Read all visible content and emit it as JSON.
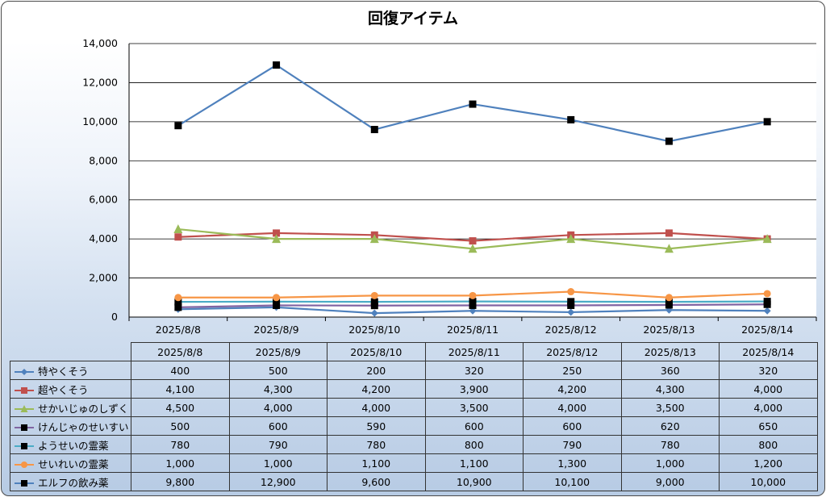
{
  "chart_data": {
    "type": "line",
    "title": "回復アイテム",
    "categories": [
      "2025/8/8",
      "2025/8/9",
      "2025/8/10",
      "2025/8/11",
      "2025/8/12",
      "2025/8/13",
      "2025/8/14"
    ],
    "ylim": [
      0,
      14000
    ],
    "yticks": [
      0,
      2000,
      4000,
      6000,
      8000,
      10000,
      12000,
      14000
    ],
    "ytick_labels": [
      "0",
      "2,000",
      "4,000",
      "6,000",
      "8,000",
      "10,000",
      "12,000",
      "14,000"
    ],
    "grid": true,
    "series": [
      {
        "name": "特やくそう",
        "color": "#4f81bd",
        "marker": "diamond",
        "marker_color": "#4f81bd",
        "values": [
          400,
          500,
          200,
          320,
          250,
          360,
          320
        ],
        "labels": [
          "400",
          "500",
          "200",
          "320",
          "250",
          "360",
          "320"
        ]
      },
      {
        "name": "超やくそう",
        "color": "#c0504d",
        "marker": "square",
        "marker_color": "#c0504d",
        "values": [
          4100,
          4300,
          4200,
          3900,
          4200,
          4300,
          4000
        ],
        "labels": [
          "4,100",
          "4,300",
          "4,200",
          "3,900",
          "4,200",
          "4,300",
          "4,000"
        ]
      },
      {
        "name": "せかいじゅのしずく",
        "color": "#9bbb59",
        "marker": "triangle",
        "marker_color": "#9bbb59",
        "values": [
          4500,
          4000,
          4000,
          3500,
          4000,
          3500,
          4000
        ],
        "labels": [
          "4,500",
          "4,000",
          "4,000",
          "3,500",
          "4,000",
          "3,500",
          "4,000"
        ]
      },
      {
        "name": "けんじゃのせいすい",
        "color": "#8064a2",
        "marker": "square",
        "marker_color": "#000000",
        "values": [
          500,
          600,
          590,
          600,
          600,
          620,
          650
        ],
        "labels": [
          "500",
          "600",
          "590",
          "600",
          "600",
          "620",
          "650"
        ]
      },
      {
        "name": "ようせいの霊薬",
        "color": "#4bacc6",
        "marker": "square",
        "marker_color": "#000000",
        "values": [
          780,
          790,
          780,
          800,
          790,
          780,
          800
        ],
        "labels": [
          "780",
          "790",
          "780",
          "800",
          "790",
          "780",
          "800"
        ]
      },
      {
        "name": "せいれいの霊薬",
        "color": "#f79646",
        "marker": "circle",
        "marker_color": "#f79646",
        "values": [
          1000,
          1000,
          1100,
          1100,
          1300,
          1000,
          1200
        ],
        "labels": [
          "1,000",
          "1,000",
          "1,100",
          "1,100",
          "1,300",
          "1,000",
          "1,200"
        ]
      },
      {
        "name": "エルフの飲み薬",
        "color": "#4f81bd",
        "marker": "square",
        "marker_color": "#000000",
        "values": [
          9800,
          12900,
          9600,
          10900,
          10100,
          9000,
          10000
        ],
        "labels": [
          "9,800",
          "12,900",
          "9,600",
          "10,900",
          "10,100",
          "9,000",
          "10,000"
        ]
      }
    ]
  }
}
